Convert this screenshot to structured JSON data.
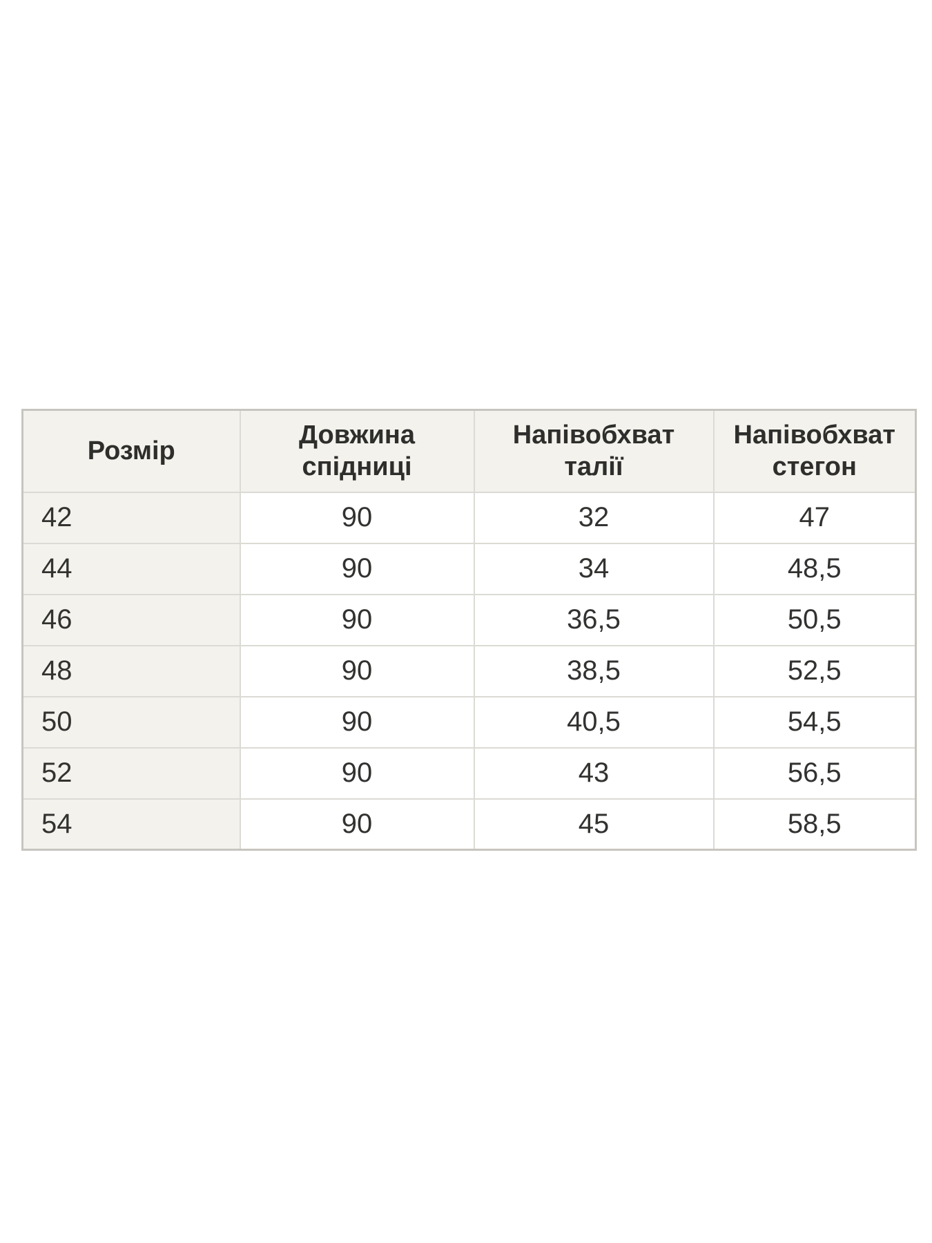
{
  "page": {
    "background_color": "#ffffff"
  },
  "table": {
    "type": "size-chart",
    "colors": {
      "header_background": "#f4f2ec",
      "first_column_background": "#f4f2ec",
      "cell_background": "#ffffff",
      "inner_border": "#dcdad4",
      "outer_border": "#c7c5bf",
      "text": "#323230"
    },
    "columns": [
      {
        "label": "Розмір",
        "lines": [
          "Розмір"
        ]
      },
      {
        "label": "Довжина спідниці",
        "lines": [
          "Довжина",
          "спідниці"
        ]
      },
      {
        "label": "Напівобхват талії",
        "lines": [
          "Напівобхват",
          "талії"
        ]
      },
      {
        "label": "Напівобхват стегон",
        "lines": [
          "Напівобхват",
          "стегон"
        ]
      }
    ],
    "rows": [
      [
        "42",
        "90",
        "32",
        "47"
      ],
      [
        "44",
        "90",
        "34",
        "48,5"
      ],
      [
        "46",
        "90",
        "36,5",
        "50,5"
      ],
      [
        "48",
        "90",
        "38,5",
        "52,5"
      ],
      [
        "50",
        "90",
        "40,5",
        "54,5"
      ],
      [
        "52",
        "90",
        "43",
        "56,5"
      ],
      [
        "54",
        "90",
        "45",
        "58,5"
      ]
    ]
  }
}
